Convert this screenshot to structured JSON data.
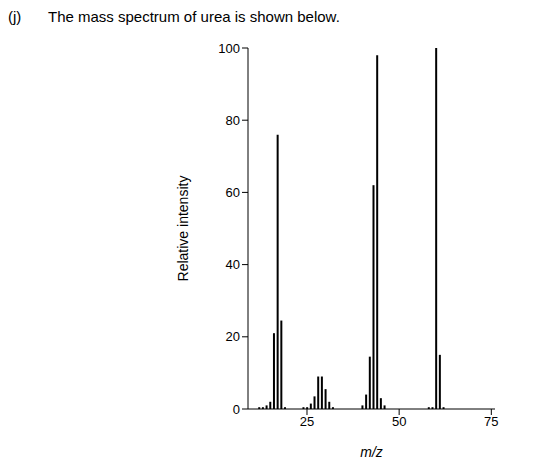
{
  "chart_data": {
    "type": "bar",
    "title": "The mass spectrum of urea is shown below.",
    "annotations": [
      "(j)"
    ],
    "x_label": "m/z",
    "y_label": "Relative intensity",
    "x": [
      12,
      13,
      14,
      15,
      16,
      17,
      18,
      19,
      24,
      25,
      26,
      27,
      28,
      29,
      30,
      31,
      32,
      40,
      41,
      42,
      43,
      44,
      45,
      46,
      58,
      59,
      60,
      61,
      62
    ],
    "values": [
      0.5,
      0.5,
      1,
      2,
      21,
      76,
      24.5,
      0.5,
      0.5,
      0.5,
      1.5,
      3.5,
      9,
      9,
      5.5,
      2,
      0.5,
      1,
      4,
      14.5,
      62,
      98,
      3,
      1,
      0.5,
      0.5,
      100,
      15,
      0.5
    ],
    "color": "#000000",
    "xlim": [
      9,
      76
    ],
    "xticks": [
      25,
      50,
      75
    ],
    "ylim": [
      0,
      100
    ],
    "yticks": [
      0,
      20,
      40,
      60,
      80,
      100
    ],
    "grid": false
  }
}
